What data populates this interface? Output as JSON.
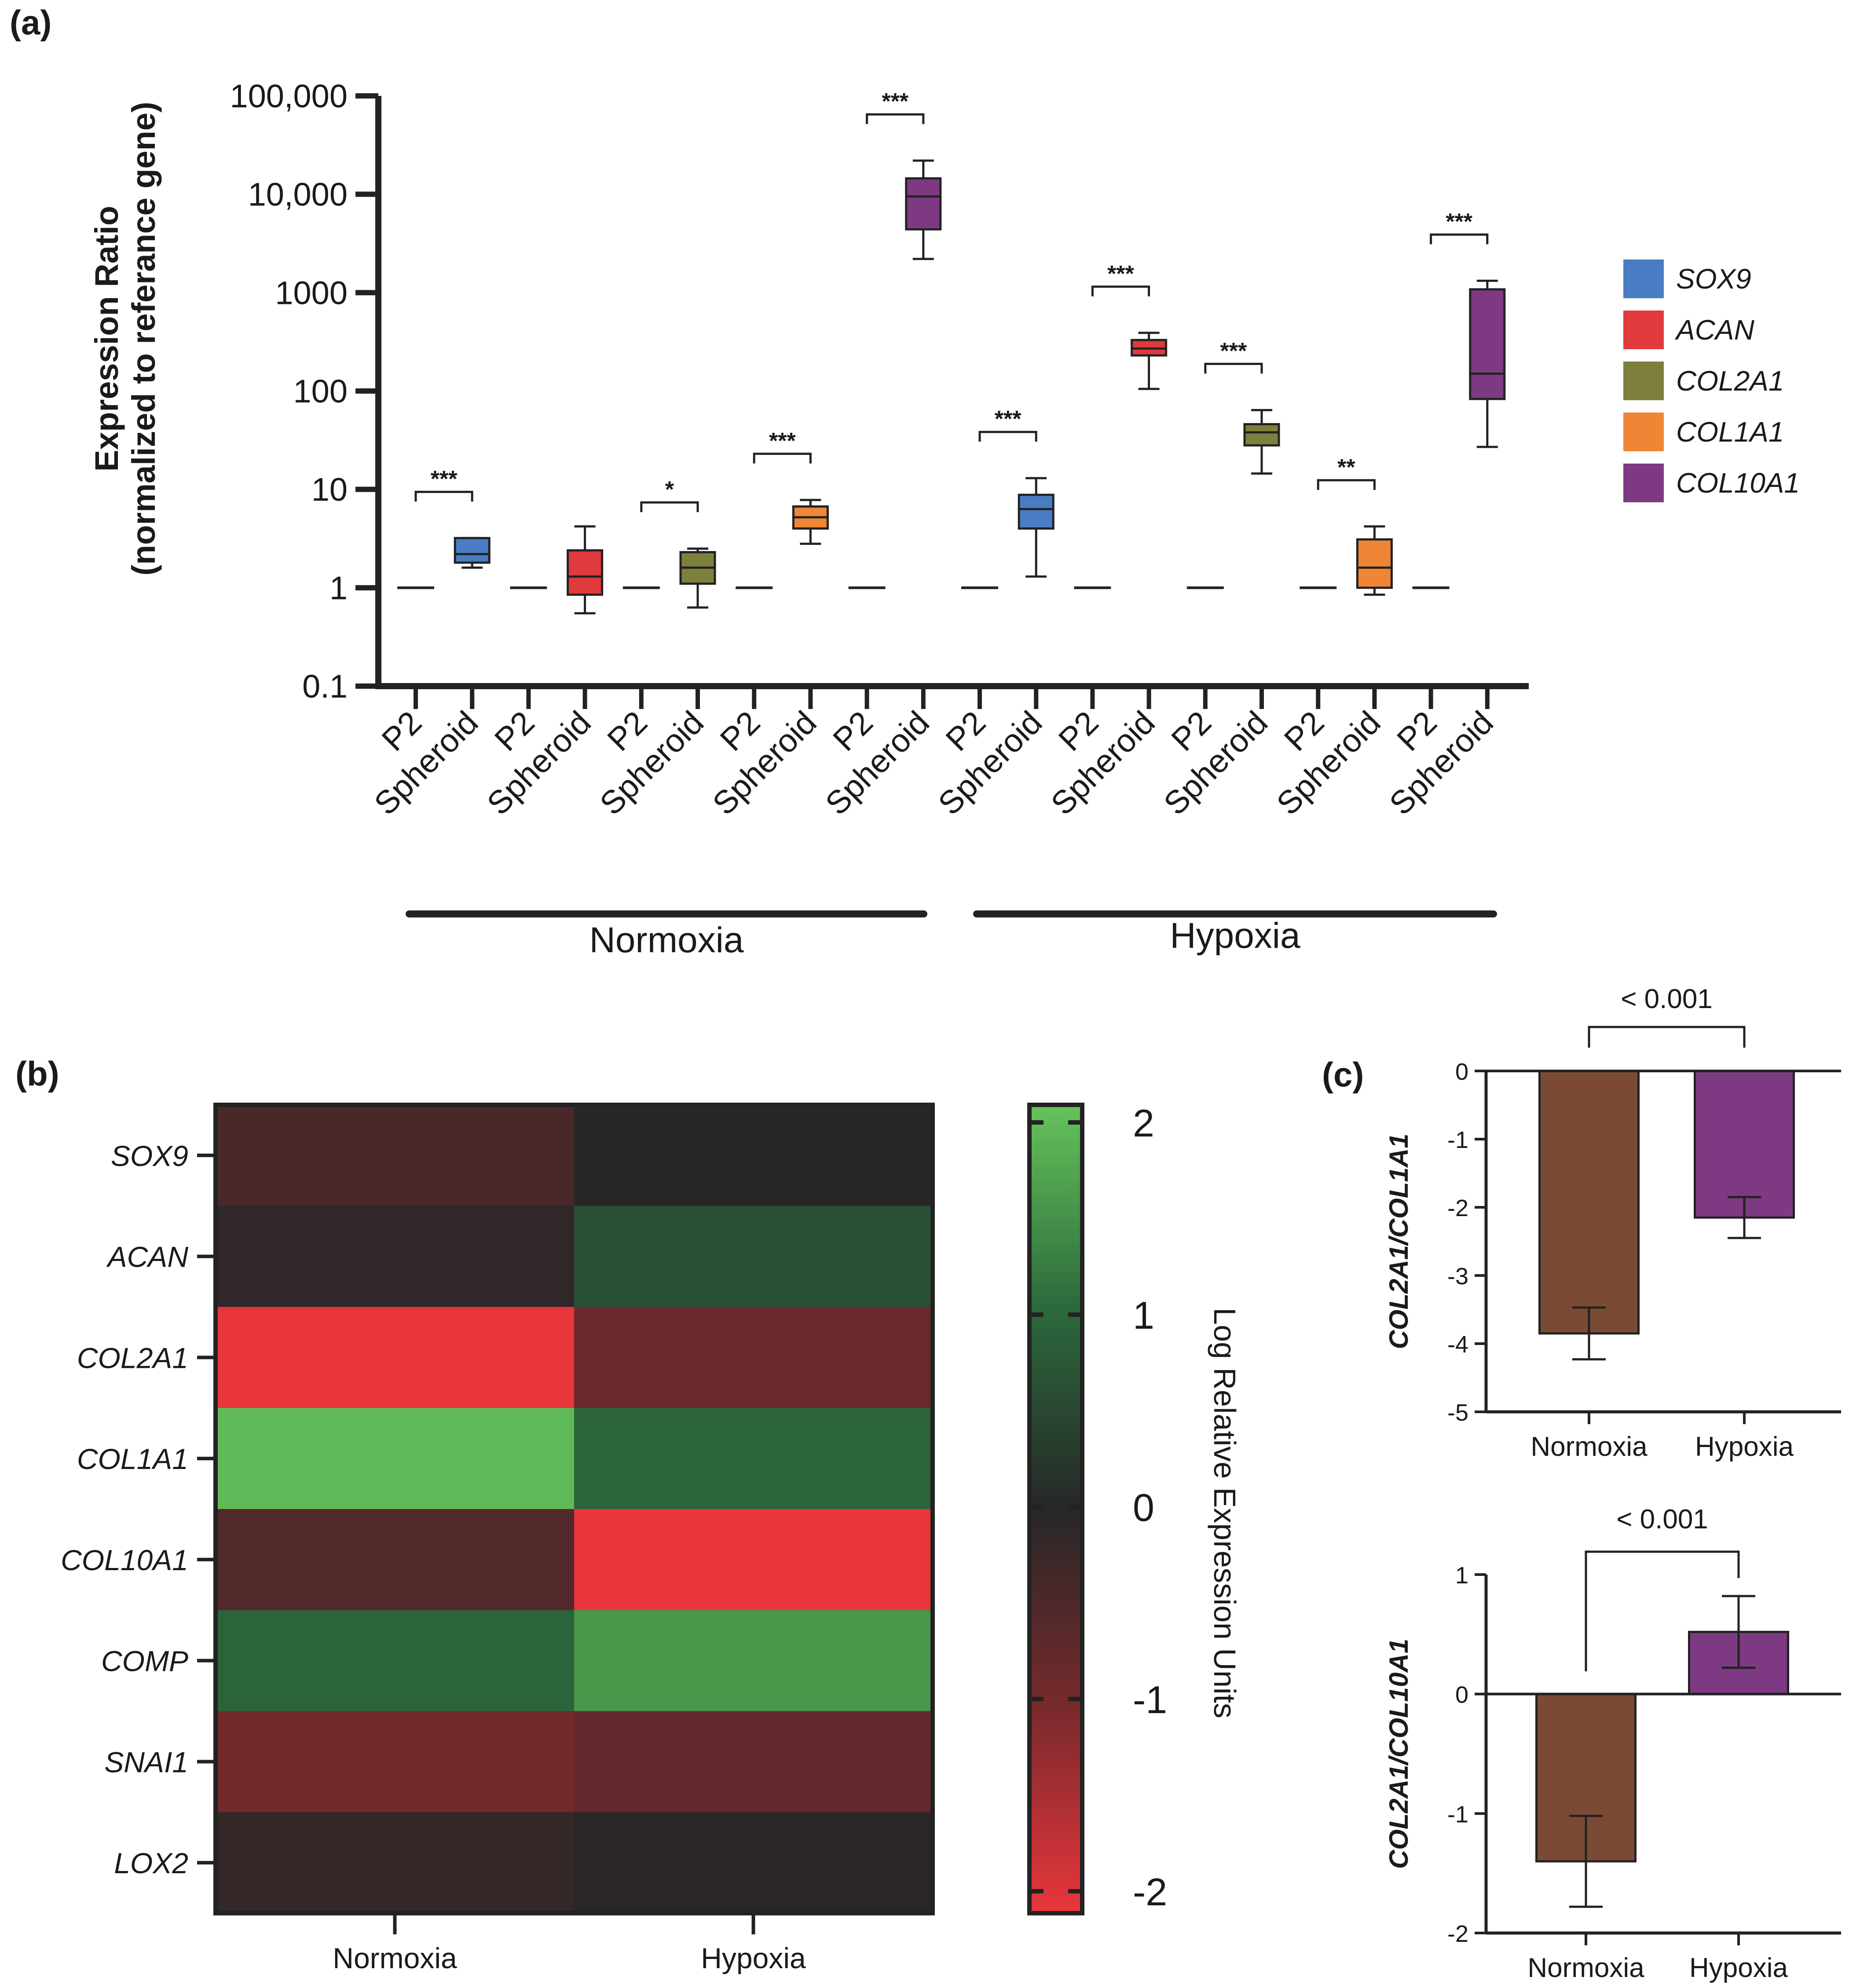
{
  "panel_labels": {
    "a": "(a)",
    "b": "(b)",
    "c": "(c)"
  },
  "chart_data": [
    {
      "id": "a",
      "type": "boxplot",
      "yscale": "log",
      "ylim": [
        0.1,
        100000
      ],
      "ylabel_line1": "Expression Ratio",
      "ylabel_line2": "(normalized to referance gene)",
      "yticks": [
        {
          "v": 100000,
          "label": "100,000"
        },
        {
          "v": 10000,
          "label": "10,000"
        },
        {
          "v": 1000,
          "label": "1000"
        },
        {
          "v": 100,
          "label": "100"
        },
        {
          "v": 10,
          "label": "10"
        },
        {
          "v": 1,
          "label": "1"
        },
        {
          "v": 0.1,
          "label": "0.1"
        }
      ],
      "genes": [
        {
          "name": "SOX9",
          "color": "#4a7cc4"
        },
        {
          "name": "ACAN",
          "color": "#e03a3e"
        },
        {
          "name": "COL2A1",
          "color": "#7d7f3c"
        },
        {
          "name": "COL1A1",
          "color": "#ef8636"
        },
        {
          "name": "COL10A1",
          "color": "#7d3a82"
        }
      ],
      "groups": [
        {
          "label": "Normoxia",
          "items": [
            {
              "gene": "SOX9",
              "p2_label": "P2",
              "sph_label": "Spheroid",
              "p2": 1,
              "box": {
                "min": 1.6,
                "q1": 1.8,
                "median": 2.2,
                "q3": 3.2,
                "max": 3.2
              },
              "sig": "***"
            },
            {
              "gene": "ACAN",
              "p2_label": "P2",
              "sph_label": "Spheroid",
              "p2": 1,
              "box": {
                "min": 0.55,
                "q1": 0.85,
                "median": 1.3,
                "q3": 2.4,
                "max": 4.2
              },
              "sig": ""
            },
            {
              "gene": "COL2A1",
              "p2_label": "P2",
              "sph_label": "Spheroid",
              "p2": 1,
              "box": {
                "min": 0.63,
                "q1": 1.1,
                "median": 1.6,
                "q3": 2.3,
                "max": 2.5
              },
              "sig": "*"
            },
            {
              "gene": "COL1A1",
              "p2_label": "P2",
              "sph_label": "Spheroid",
              "p2": 1,
              "box": {
                "min": 2.8,
                "q1": 4.0,
                "median": 5.2,
                "q3": 6.7,
                "max": 7.8
              },
              "sig": "***"
            },
            {
              "gene": "COL10A1",
              "p2_label": "P2",
              "sph_label": "Spheroid",
              "p2": 1,
              "box": {
                "min": 2200,
                "q1": 4400,
                "median": 9500,
                "q3": 14500,
                "max": 22000
              },
              "sig": "***"
            }
          ]
        },
        {
          "label": "Hypoxia",
          "items": [
            {
              "gene": "SOX9",
              "p2_label": "P2",
              "sph_label": "Spheroid",
              "p2": 1,
              "box": {
                "min": 1.3,
                "q1": 4.0,
                "median": 6.3,
                "q3": 8.8,
                "max": 13.0
              },
              "sig": "***"
            },
            {
              "gene": "ACAN",
              "p2_label": "P2",
              "sph_label": "Spheroid",
              "p2": 1,
              "box": {
                "min": 105,
                "q1": 230,
                "median": 270,
                "q3": 330,
                "max": 390
              },
              "sig": "***"
            },
            {
              "gene": "COL2A1",
              "p2_label": "P2",
              "sph_label": "Spheroid",
              "p2": 1,
              "box": {
                "min": 14.5,
                "q1": 28,
                "median": 38,
                "q3": 46,
                "max": 64
              },
              "sig": "***"
            },
            {
              "gene": "COL1A1",
              "p2_label": "P2",
              "sph_label": "Spheroid",
              "p2": 1,
              "box": {
                "min": 0.85,
                "q1": 1.0,
                "median": 1.6,
                "q3": 3.1,
                "max": 4.2
              },
              "sig": "**"
            },
            {
              "gene": "COL10A1",
              "p2_label": "P2",
              "sph_label": "Spheroid",
              "p2": 1,
              "box": {
                "min": 27,
                "q1": 83,
                "median": 150,
                "q3": 1080,
                "max": 1320
              },
              "sig": "***"
            }
          ]
        }
      ]
    },
    {
      "id": "b",
      "type": "heatmap",
      "columns": [
        "Normoxia",
        "Hypoxia"
      ],
      "rows": [
        "SOX9",
        "ACAN",
        "COL2A1",
        "COL1A1",
        "COL10A1",
        "COMP",
        "SNAI1",
        "LOX2"
      ],
      "values": [
        [
          -0.4,
          0.0
        ],
        [
          -0.1,
          0.6
        ],
        [
          -2.0,
          -0.8
        ],
        [
          1.9,
          0.9
        ],
        [
          -0.5,
          -2.0
        ],
        [
          0.9,
          1.5
        ],
        [
          -0.9,
          -0.7
        ],
        [
          -0.15,
          -0.05
        ]
      ],
      "colorbar": {
        "min": -2,
        "max": 2,
        "ticks": [
          "2",
          "1",
          "0",
          "-1",
          "-2"
        ],
        "label": "Log Relative Expression Units"
      }
    },
    {
      "id": "c1",
      "type": "bar",
      "categories": [
        "Normoxia",
        "Hypoxia"
      ],
      "values": [
        -3.85,
        -2.15
      ],
      "errors": [
        0.38,
        0.3
      ],
      "colors": [
        "#7b4a35",
        "#7d3a82"
      ],
      "ylabel": "COL2A1/COL1A1",
      "ylim": [
        -5,
        0
      ],
      "yticks": [
        "0",
        "-1",
        "-2",
        "-3",
        "-4",
        "-5"
      ],
      "p_label": "< 0.001"
    },
    {
      "id": "c2",
      "type": "bar",
      "categories": [
        "Normoxia",
        "Hypoxia"
      ],
      "values": [
        -1.4,
        0.52
      ],
      "errors": [
        0.38,
        0.3
      ],
      "colors": [
        "#7b4a35",
        "#7d3a82"
      ],
      "ylabel": "COL2A1/COL10A1",
      "ylim": [
        -2,
        1
      ],
      "yticks": [
        "1",
        "0",
        "-1",
        "-2"
      ],
      "p_label": "< 0.001"
    }
  ]
}
